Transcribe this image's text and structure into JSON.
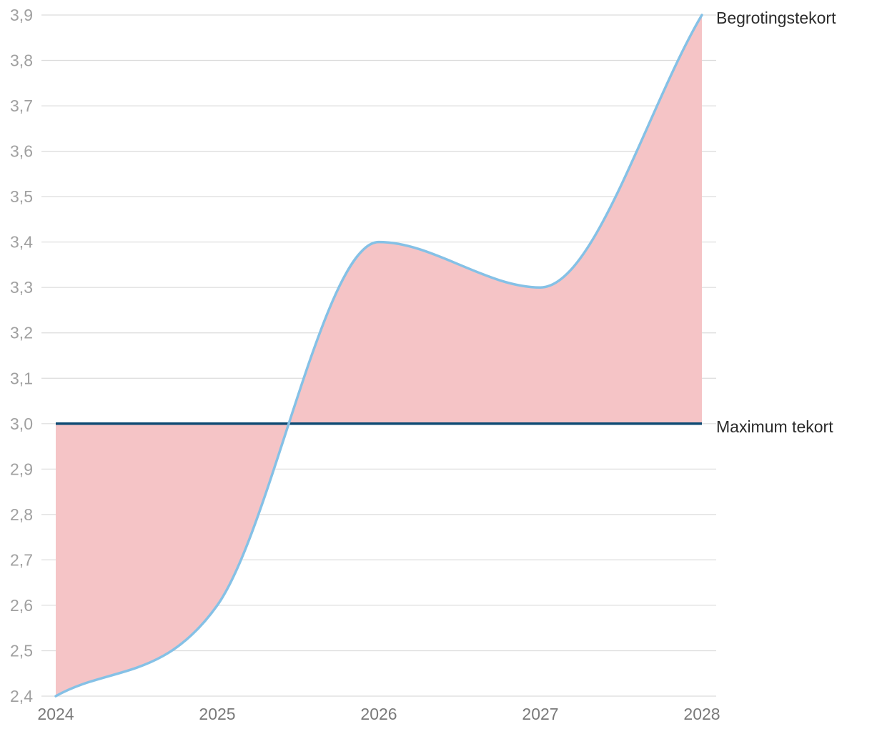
{
  "chart_data": {
    "type": "area",
    "title": "",
    "xlabel": "",
    "ylabel": "",
    "x": [
      2024,
      2025,
      2026,
      2027,
      2028
    ],
    "x_tick_labels": [
      "2024",
      "2025",
      "2026",
      "2027",
      "2028"
    ],
    "ylim": [
      2.4,
      3.9
    ],
    "y_ticks": [
      2.4,
      2.5,
      2.6,
      2.7,
      2.8,
      2.9,
      3.0,
      3.1,
      3.2,
      3.3,
      3.4,
      3.5,
      3.6,
      3.7,
      3.8,
      3.9
    ],
    "y_tick_labels": [
      "2,4",
      "2,5",
      "2,6",
      "2,7",
      "2,8",
      "2,9",
      "3,0",
      "3,1",
      "3,2",
      "3,3",
      "3,4",
      "3,5",
      "3,6",
      "3,7",
      "3,8",
      "3,9"
    ],
    "grid": true,
    "legend": "none (series labelled directly at right end of lines)",
    "series": [
      {
        "name": "Begrotingstekort",
        "values": [
          2.4,
          2.6,
          3.4,
          3.3,
          3.9
        ],
        "color": "#85c1e6"
      },
      {
        "name": "Maximum tekort",
        "values": [
          3.0,
          3.0,
          3.0,
          3.0,
          3.0
        ],
        "color": "#0d4a73"
      }
    ],
    "area_fill_color": "#f5c4c6"
  }
}
